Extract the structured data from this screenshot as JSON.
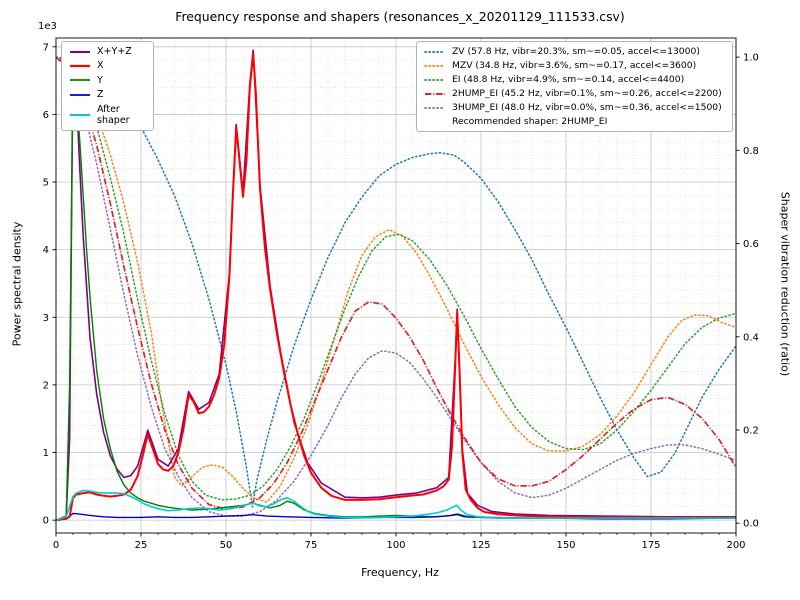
{
  "chart_data": {
    "type": "line",
    "title": "Frequency response and shapers (resonances_x_20201129_111533.csv)",
    "xlabel": "Frequency, Hz",
    "ylabel_left": "Power spectral density",
    "ylabel_right": "Shaper vibration reduction (ratio)",
    "offset_text": "1e3",
    "left_axis_unit_multiplier": 1000,
    "xlim": [
      0,
      200
    ],
    "ylim_left": [
      -0.19,
      7.13
    ],
    "ylim_right": [
      -0.021,
      1.041
    ],
    "x_ticks": [
      0,
      25,
      50,
      75,
      100,
      125,
      150,
      175,
      200
    ],
    "y_ticks_left": [
      0,
      1,
      2,
      3,
      4,
      5,
      6,
      7
    ],
    "y_ticks_right": [
      0.0,
      0.2,
      0.4,
      0.6,
      0.8,
      1.0
    ],
    "grid": {
      "major": true,
      "minor": true,
      "x_minor_step": 5,
      "y_minor_step": 0.2
    },
    "recommended_shaper": "2HUMP_EI",
    "legend_note": "Recommended shaper: 2HUMP_EI",
    "psd_series": [
      {
        "key": "xyz",
        "label": "X+Y+Z",
        "color": "#800080",
        "linestyle": "solid",
        "width": 1.6,
        "axis": "left",
        "x": [
          0,
          3,
          4,
          5,
          6,
          7,
          8,
          10,
          12,
          14,
          16,
          18,
          20,
          22,
          24,
          27,
          30,
          33,
          36,
          39,
          42,
          45,
          48,
          51,
          53,
          55,
          57,
          58,
          60,
          63,
          66,
          70,
          74,
          78,
          85,
          90,
          95,
          100,
          106,
          112,
          115.5,
          117.5,
          118,
          119.5,
          121,
          124,
          128,
          135,
          145,
          160,
          180,
          200
        ],
        "y": [
          0,
          0.06,
          1.2,
          7.0,
          6.3,
          5.2,
          4.2,
          2.7,
          1.85,
          1.3,
          0.95,
          0.75,
          0.63,
          0.66,
          0.8,
          1.33,
          0.9,
          0.8,
          1.06,
          1.9,
          1.64,
          1.74,
          2.16,
          3.65,
          5.85,
          4.84,
          6.45,
          6.95,
          4.95,
          3.45,
          2.5,
          1.45,
          0.85,
          0.55,
          0.34,
          0.33,
          0.34,
          0.37,
          0.4,
          0.48,
          0.63,
          2.45,
          3.12,
          1.05,
          0.4,
          0.22,
          0.13,
          0.09,
          0.07,
          0.06,
          0.05,
          0.05
        ]
      },
      {
        "key": "x",
        "label": "X",
        "color": "#ff0000",
        "linestyle": "solid",
        "width": 2.0,
        "axis": "left",
        "x": [
          0,
          3,
          4,
          5,
          6,
          8,
          10,
          12,
          14,
          16,
          18,
          20,
          22,
          24,
          25.5,
          27,
          28.5,
          30,
          31.5,
          33,
          34.5,
          36,
          37.5,
          39,
          40.5,
          42,
          43.5,
          45,
          46.5,
          48,
          49.5,
          51,
          52,
          53,
          54,
          55,
          56,
          57,
          58,
          58.8,
          60,
          61.5,
          63,
          65,
          67,
          69,
          71,
          73,
          75,
          78,
          81,
          85,
          90,
          95,
          100,
          104,
          108,
          112,
          114,
          115.5,
          116.5,
          117.5,
          118,
          118.7,
          119.5,
          120.5,
          122,
          124,
          126,
          130,
          135,
          140,
          150,
          160,
          175,
          200
        ],
        "y": [
          0,
          0.02,
          0.05,
          0.33,
          0.38,
          0.4,
          0.41,
          0.38,
          0.36,
          0.35,
          0.36,
          0.38,
          0.45,
          0.65,
          0.95,
          1.27,
          1.05,
          0.83,
          0.75,
          0.73,
          0.8,
          1.0,
          1.35,
          1.85,
          1.75,
          1.58,
          1.6,
          1.68,
          1.85,
          2.1,
          2.6,
          3.6,
          4.8,
          5.8,
          5.3,
          4.78,
          5.3,
          6.4,
          6.9,
          6.3,
          4.9,
          4.0,
          3.4,
          2.75,
          2.2,
          1.7,
          1.3,
          0.95,
          0.7,
          0.48,
          0.36,
          0.3,
          0.3,
          0.31,
          0.34,
          0.36,
          0.38,
          0.44,
          0.5,
          0.6,
          1.1,
          2.4,
          3.08,
          2.2,
          1.0,
          0.45,
          0.3,
          0.18,
          0.12,
          0.09,
          0.07,
          0.06,
          0.05,
          0.04,
          0.04,
          0.04
        ]
      },
      {
        "key": "y",
        "label": "Y",
        "color": "#008000",
        "linestyle": "solid",
        "width": 1.4,
        "axis": "left",
        "x": [
          0,
          3,
          4,
          5,
          6,
          7,
          8,
          9,
          10,
          12,
          14,
          16,
          18,
          20,
          22,
          24,
          26,
          28,
          30,
          33,
          36,
          40,
          44,
          48,
          52,
          55,
          58,
          60,
          63,
          66,
          68,
          70,
          73,
          76,
          80,
          85,
          90,
          95,
          100,
          105,
          110,
          115,
          118,
          120,
          125,
          130,
          140,
          150,
          160,
          175,
          200
        ],
        "y": [
          0,
          0.05,
          2.0,
          6.55,
          6.3,
          5.6,
          4.8,
          4.0,
          3.3,
          2.2,
          1.5,
          1.05,
          0.72,
          0.52,
          0.4,
          0.33,
          0.28,
          0.25,
          0.22,
          0.19,
          0.17,
          0.15,
          0.16,
          0.18,
          0.2,
          0.22,
          0.25,
          0.22,
          0.18,
          0.22,
          0.28,
          0.25,
          0.15,
          0.1,
          0.07,
          0.05,
          0.05,
          0.06,
          0.07,
          0.06,
          0.05,
          0.06,
          0.08,
          0.05,
          0.04,
          0.04,
          0.03,
          0.03,
          0.03,
          0.03,
          0.03
        ]
      },
      {
        "key": "z",
        "label": "Z",
        "color": "#0000cd",
        "linestyle": "solid",
        "width": 1.4,
        "axis": "left",
        "x": [
          0,
          3,
          5,
          7,
          10,
          14,
          18,
          25,
          30,
          35,
          40,
          45,
          50,
          55,
          58,
          62,
          68,
          75,
          85,
          95,
          105,
          112,
          116,
          118,
          121,
          130,
          145,
          160,
          180,
          200
        ],
        "y": [
          0,
          0.02,
          0.1,
          0.09,
          0.07,
          0.05,
          0.04,
          0.04,
          0.05,
          0.04,
          0.04,
          0.05,
          0.06,
          0.07,
          0.08,
          0.06,
          0.05,
          0.04,
          0.03,
          0.04,
          0.04,
          0.05,
          0.07,
          0.09,
          0.05,
          0.03,
          0.03,
          0.02,
          0.02,
          0.03
        ]
      },
      {
        "key": "after_shaper",
        "label": "After\nshaper",
        "color": "#00cccc",
        "linestyle": "solid",
        "width": 1.6,
        "axis": "left",
        "x": [
          0,
          3,
          4,
          5,
          6,
          8,
          10,
          12,
          14,
          16,
          18,
          20,
          22,
          24,
          26,
          28,
          30,
          33,
          36,
          39,
          42,
          45,
          48,
          50,
          52,
          54,
          56,
          58,
          60,
          62,
          64,
          66,
          68,
          70,
          72,
          74,
          76,
          80,
          85,
          90,
          95,
          100,
          105,
          110,
          113,
          115,
          117,
          118,
          119,
          121,
          124,
          128,
          135,
          145,
          160,
          180,
          200
        ],
        "y": [
          0,
          0.05,
          0.2,
          0.35,
          0.4,
          0.44,
          0.43,
          0.41,
          0.4,
          0.4,
          0.4,
          0.39,
          0.35,
          0.3,
          0.24,
          0.2,
          0.17,
          0.14,
          0.15,
          0.17,
          0.18,
          0.17,
          0.15,
          0.16,
          0.18,
          0.2,
          0.23,
          0.25,
          0.21,
          0.2,
          0.24,
          0.3,
          0.33,
          0.28,
          0.2,
          0.13,
          0.09,
          0.06,
          0.04,
          0.04,
          0.04,
          0.05,
          0.06,
          0.09,
          0.12,
          0.15,
          0.2,
          0.22,
          0.15,
          0.08,
          0.05,
          0.04,
          0.03,
          0.03,
          0.03,
          0.03,
          0.03
        ]
      }
    ],
    "shaper_series": [
      {
        "key": "zv",
        "label": "ZV (57.8 Hz, vibr=20.3%, sm~=0.05, accel<=13000)",
        "color": "#1f77b4",
        "linestyle": "dotted",
        "width": 1.5,
        "axis": "right",
        "x": [
          0,
          5,
          10,
          15,
          20,
          25,
          30,
          35,
          40,
          45,
          50,
          53,
          56,
          57.8,
          59,
          62,
          65,
          70,
          75,
          80,
          85,
          90,
          95,
          100,
          105,
          110,
          113,
          117,
          120,
          125,
          130,
          135,
          140,
          145,
          150,
          155,
          160,
          165,
          170,
          174,
          178,
          182,
          186,
          190,
          195,
          200
        ],
        "y": [
          1.0,
          0.995,
          0.975,
          0.945,
          0.905,
          0.85,
          0.78,
          0.7,
          0.6,
          0.48,
          0.34,
          0.24,
          0.12,
          0.035,
          0.09,
          0.18,
          0.26,
          0.38,
          0.48,
          0.57,
          0.645,
          0.7,
          0.745,
          0.77,
          0.785,
          0.793,
          0.795,
          0.79,
          0.775,
          0.74,
          0.69,
          0.63,
          0.565,
          0.49,
          0.42,
          0.345,
          0.27,
          0.2,
          0.14,
          0.1,
          0.11,
          0.15,
          0.21,
          0.27,
          0.33,
          0.38
        ]
      },
      {
        "key": "mzv",
        "label": "MZV (34.8 Hz, vibr=3.6%, sm~=0.17, accel<=3600)",
        "color": "#ff7f0e",
        "linestyle": "dotted",
        "width": 1.5,
        "axis": "right",
        "x": [
          0,
          4,
          8,
          12,
          16,
          20,
          24,
          28,
          31,
          34.8,
          37,
          40,
          43,
          46,
          49,
          52,
          55,
          58,
          62,
          66,
          70,
          74,
          78,
          82,
          86,
          90,
          94,
          98,
          102,
          106,
          110,
          115,
          120,
          125,
          130,
          135,
          140,
          145,
          150,
          155,
          160,
          165,
          170,
          175,
          180,
          184,
          188,
          192,
          196,
          200
        ],
        "y": [
          1.0,
          0.985,
          0.94,
          0.875,
          0.79,
          0.685,
          0.56,
          0.41,
          0.26,
          0.1,
          0.08,
          0.1,
          0.12,
          0.125,
          0.12,
          0.1,
          0.075,
          0.055,
          0.045,
          0.08,
          0.14,
          0.21,
          0.3,
          0.4,
          0.5,
          0.575,
          0.615,
          0.63,
          0.615,
          0.58,
          0.53,
          0.46,
          0.385,
          0.315,
          0.255,
          0.205,
          0.17,
          0.155,
          0.155,
          0.165,
          0.19,
          0.23,
          0.28,
          0.34,
          0.4,
          0.435,
          0.447,
          0.445,
          0.43,
          0.42
        ]
      },
      {
        "key": "ei",
        "label": "EI (48.8 Hz, vibr=4.9%, sm~=0.14, accel<=4400)",
        "color": "#2ca02c",
        "linestyle": "dotted",
        "width": 1.5,
        "axis": "right",
        "x": [
          0,
          4,
          8,
          12,
          16,
          20,
          24,
          28,
          32,
          36,
          40,
          44,
          48.8,
          53,
          57,
          61,
          65,
          69,
          73,
          77,
          81,
          85,
          89,
          93,
          97,
          101,
          105,
          110,
          115,
          120,
          125,
          130,
          135,
          140,
          145,
          150,
          155,
          160,
          165,
          170,
          175,
          180,
          185,
          190,
          195,
          200
        ],
        "y": [
          1.0,
          0.98,
          0.93,
          0.85,
          0.74,
          0.62,
          0.48,
          0.35,
          0.235,
          0.145,
          0.09,
          0.06,
          0.05,
          0.052,
          0.06,
          0.08,
          0.115,
          0.165,
          0.225,
          0.3,
          0.38,
          0.46,
          0.53,
          0.585,
          0.615,
          0.62,
          0.605,
          0.565,
          0.51,
          0.445,
          0.375,
          0.31,
          0.25,
          0.205,
          0.175,
          0.16,
          0.158,
          0.17,
          0.2,
          0.24,
          0.285,
          0.335,
          0.385,
          0.42,
          0.44,
          0.45
        ]
      },
      {
        "key": "2hump_ei",
        "label": "2HUMP_EI (45.2 Hz, vibr=0.1%, sm~=0.26, accel<=2200)",
        "color": "#d62728",
        "linestyle": "dashdot",
        "width": 1.7,
        "axis": "right",
        "x": [
          0,
          4,
          8,
          12,
          16,
          20,
          24,
          28,
          32,
          36,
          40,
          45,
          50,
          55,
          60,
          64,
          68,
          72,
          76,
          80,
          84,
          88,
          92,
          96,
          100,
          104,
          108,
          112,
          116,
          120,
          125,
          130,
          135,
          140,
          145,
          150,
          155,
          160,
          165,
          170,
          175,
          180,
          185,
          190,
          195,
          200
        ],
        "y": [
          1.0,
          0.975,
          0.91,
          0.81,
          0.685,
          0.55,
          0.42,
          0.3,
          0.2,
          0.125,
          0.075,
          0.04,
          0.03,
          0.035,
          0.055,
          0.085,
          0.13,
          0.19,
          0.26,
          0.33,
          0.4,
          0.455,
          0.475,
          0.47,
          0.44,
          0.4,
          0.35,
          0.29,
          0.235,
          0.185,
          0.13,
          0.095,
          0.08,
          0.08,
          0.09,
          0.115,
          0.145,
          0.18,
          0.215,
          0.245,
          0.265,
          0.27,
          0.255,
          0.225,
          0.18,
          0.12
        ]
      },
      {
        "key": "3hump_ei",
        "label": "3HUMP_EI (48.0 Hz, vibr=0.0%, sm~=0.36, accel<=1500)",
        "color": "#9467bd",
        "linestyle": "dotted",
        "width": 1.5,
        "axis": "right",
        "x": [
          0,
          4,
          8,
          12,
          16,
          20,
          24,
          28,
          32,
          36,
          40,
          45,
          50,
          55,
          60,
          65,
          70,
          75,
          80,
          84,
          88,
          92,
          96,
          100,
          104,
          108,
          112,
          116,
          120,
          125,
          130,
          135,
          140,
          145,
          150,
          155,
          160,
          165,
          170,
          175,
          180,
          185,
          190,
          195,
          200
        ],
        "y": [
          1.0,
          0.97,
          0.89,
          0.77,
          0.63,
          0.49,
          0.36,
          0.25,
          0.16,
          0.1,
          0.055,
          0.025,
          0.015,
          0.015,
          0.025,
          0.05,
          0.09,
          0.145,
          0.21,
          0.27,
          0.32,
          0.355,
          0.37,
          0.365,
          0.345,
          0.31,
          0.27,
          0.225,
          0.18,
          0.13,
          0.09,
          0.065,
          0.055,
          0.06,
          0.075,
          0.095,
          0.115,
          0.135,
          0.15,
          0.16,
          0.168,
          0.168,
          0.16,
          0.148,
          0.135
        ]
      }
    ]
  }
}
